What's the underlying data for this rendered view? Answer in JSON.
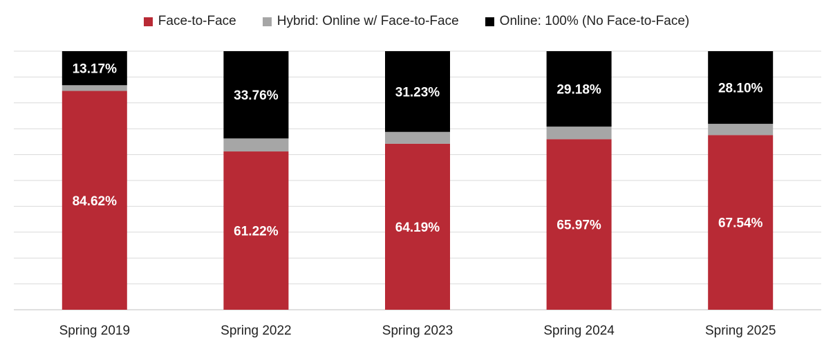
{
  "chart_data": {
    "type": "bar",
    "stacked": true,
    "title": "",
    "xlabel": "",
    "ylabel": "",
    "ylim": [
      0,
      100
    ],
    "grid": true,
    "legend_position": "top",
    "categories": [
      "Spring 2019",
      "Spring 2022",
      "Spring 2023",
      "Spring 2024",
      "Spring 2025"
    ],
    "series": [
      {
        "name": "Face-to-Face",
        "color": "#b82a35",
        "values": [
          84.62,
          61.22,
          64.19,
          65.97,
          67.54
        ],
        "labels": [
          "84.62%",
          "61.22%",
          "64.19%",
          "65.97%",
          "67.54%"
        ]
      },
      {
        "name": "Hybrid: Online w/ Face-to-Face",
        "color": "#a6a6a6",
        "values": [
          2.21,
          5.02,
          4.58,
          4.85,
          4.36
        ],
        "labels": [
          "",
          "",
          "",
          "",
          ""
        ]
      },
      {
        "name": "Online: 100% (No Face-to-Face)",
        "color": "#000000",
        "values": [
          13.17,
          33.76,
          31.23,
          29.18,
          28.1
        ],
        "labels": [
          "13.17%",
          "33.76%",
          "31.23%",
          "29.18%",
          "28.10%"
        ]
      }
    ]
  }
}
